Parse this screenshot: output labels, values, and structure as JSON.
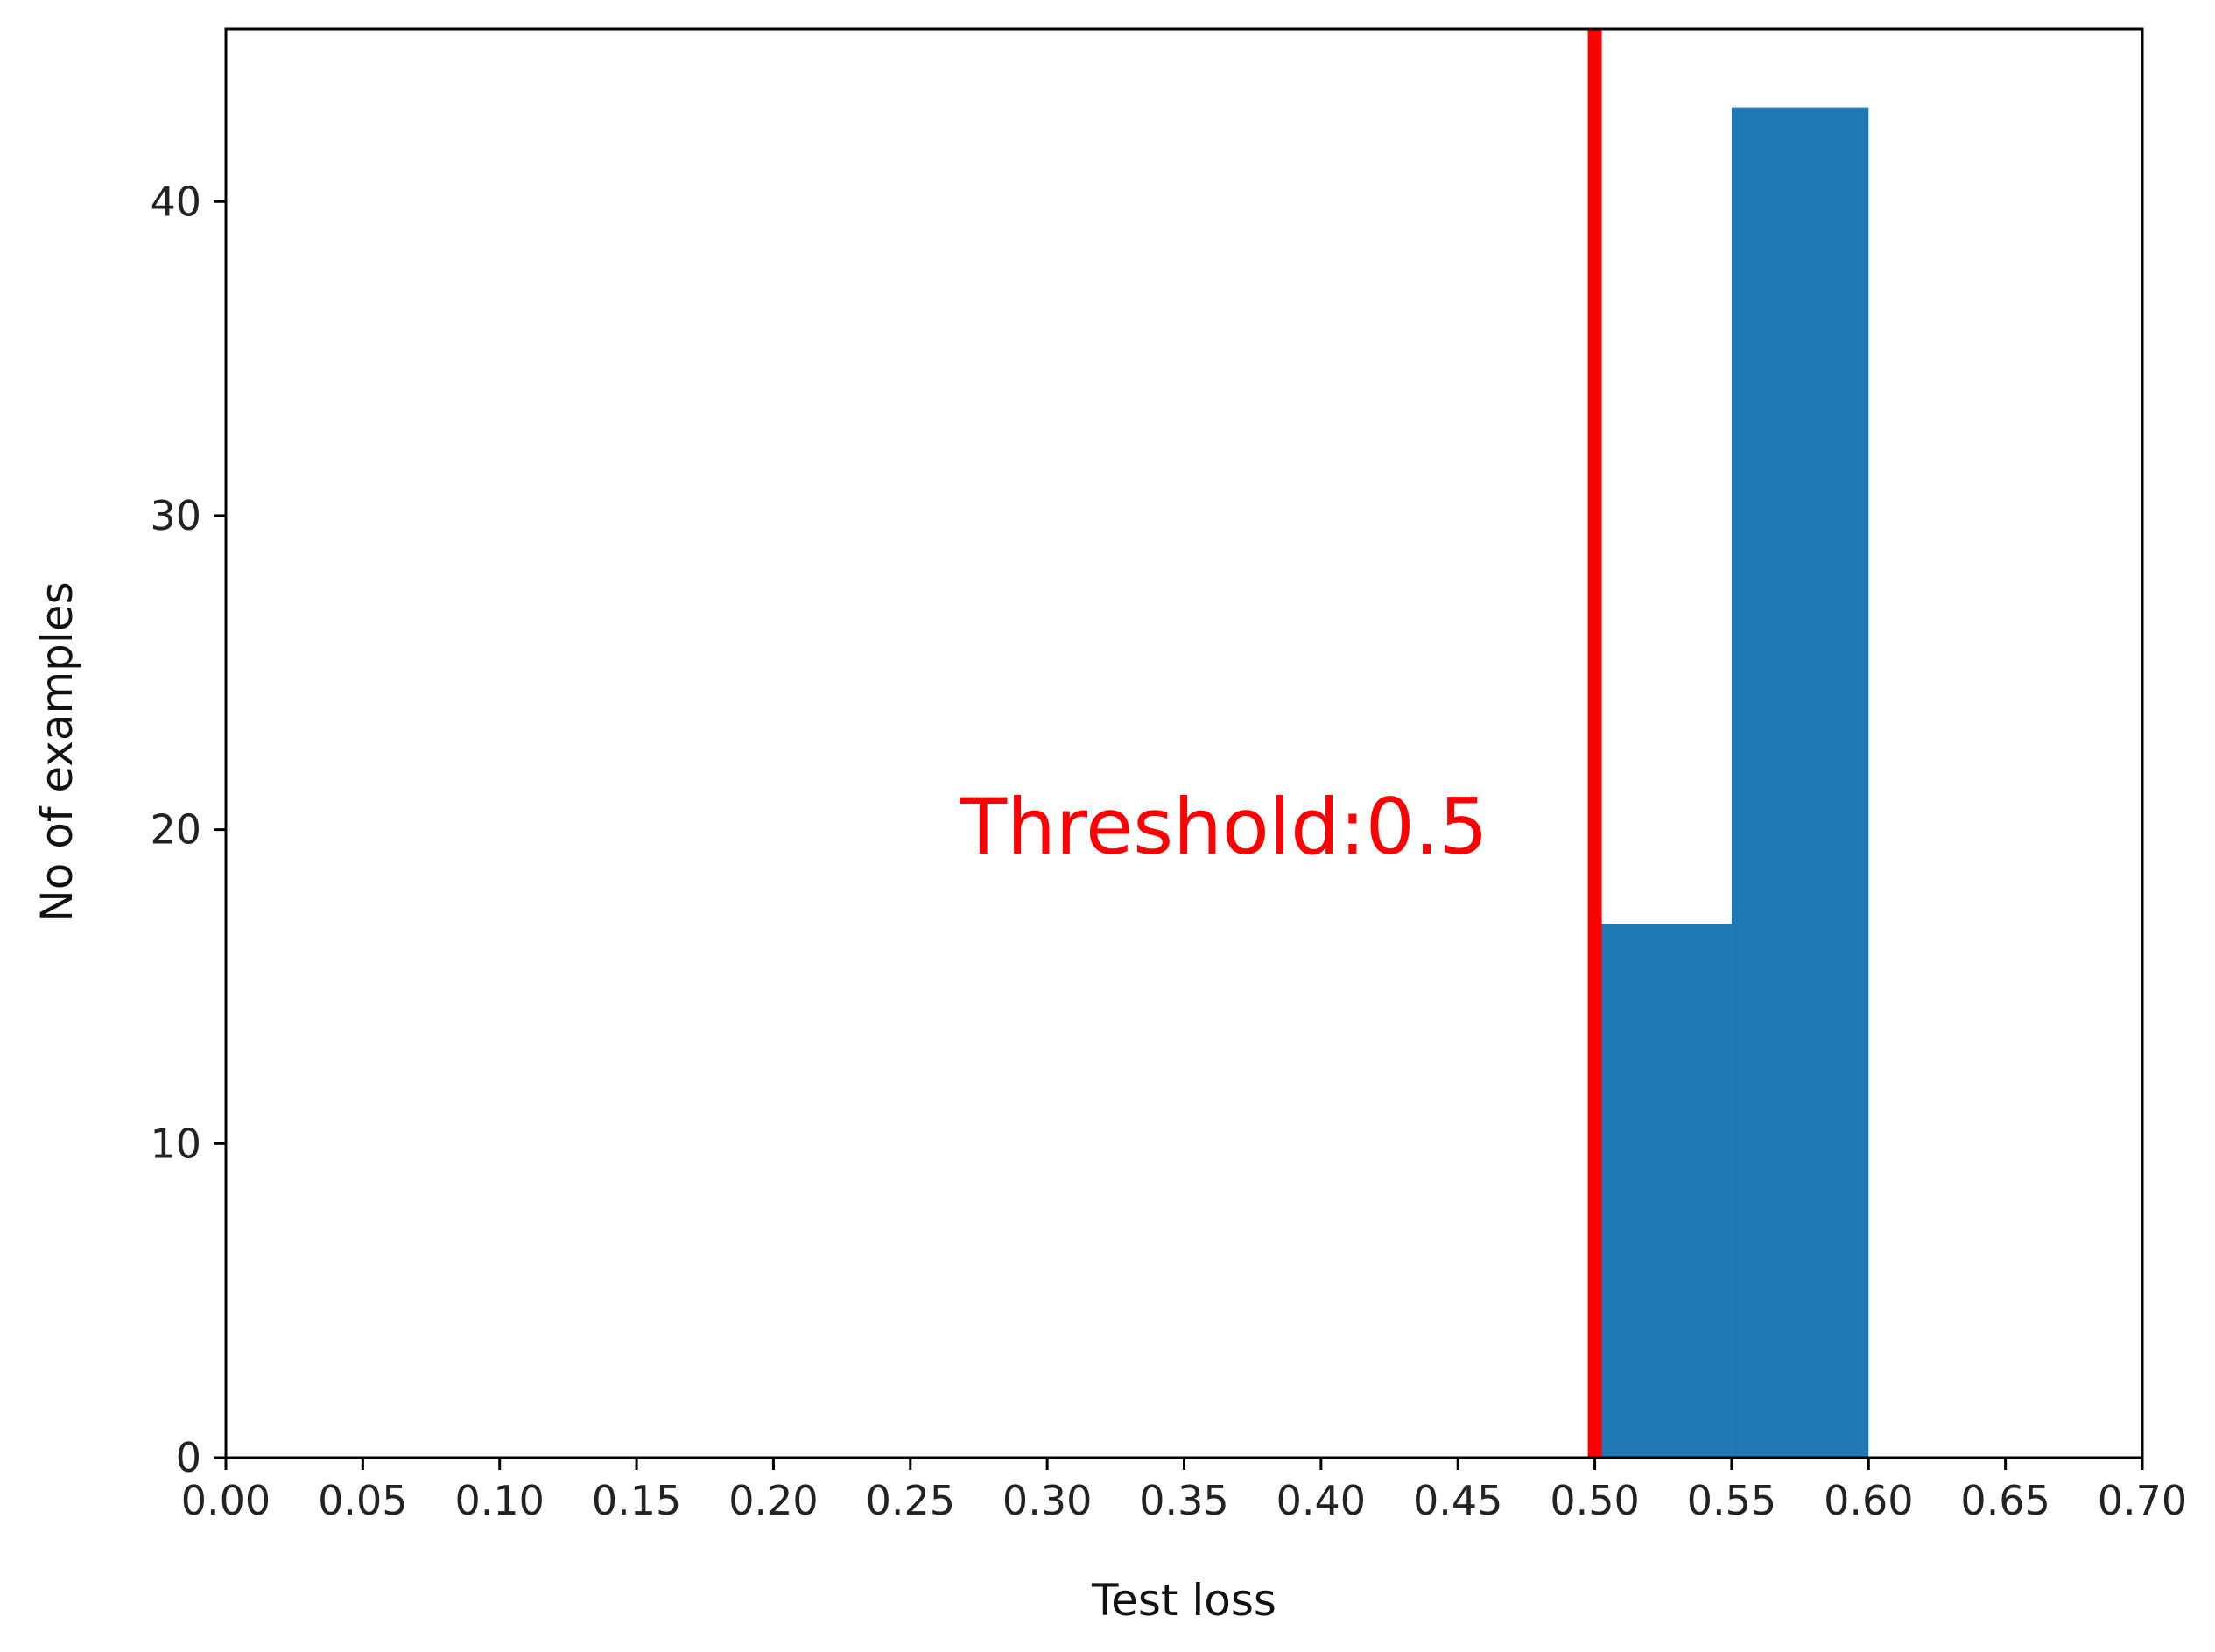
{
  "chart_data": {
    "type": "bar",
    "xlabel": "Test loss",
    "ylabel": "No of examples",
    "xlim": [
      0.0,
      0.7
    ],
    "ylim": [
      0,
      45.5
    ],
    "xticks": [
      "0.00",
      "0.05",
      "0.10",
      "0.15",
      "0.20",
      "0.25",
      "0.30",
      "0.35",
      "0.40",
      "0.45",
      "0.50",
      "0.55",
      "0.60",
      "0.65",
      "0.70"
    ],
    "yticks": [
      "0",
      "10",
      "20",
      "30",
      "40"
    ],
    "bins": [
      {
        "start": 0.5,
        "end": 0.55,
        "count": 17
      },
      {
        "start": 0.55,
        "end": 0.6,
        "count": 43
      }
    ],
    "bar_color": "#1f77b4",
    "threshold": {
      "value": 0.5,
      "label": "Threshold:0.5",
      "color": "#ff0000"
    },
    "grid": false,
    "legend": "none"
  }
}
